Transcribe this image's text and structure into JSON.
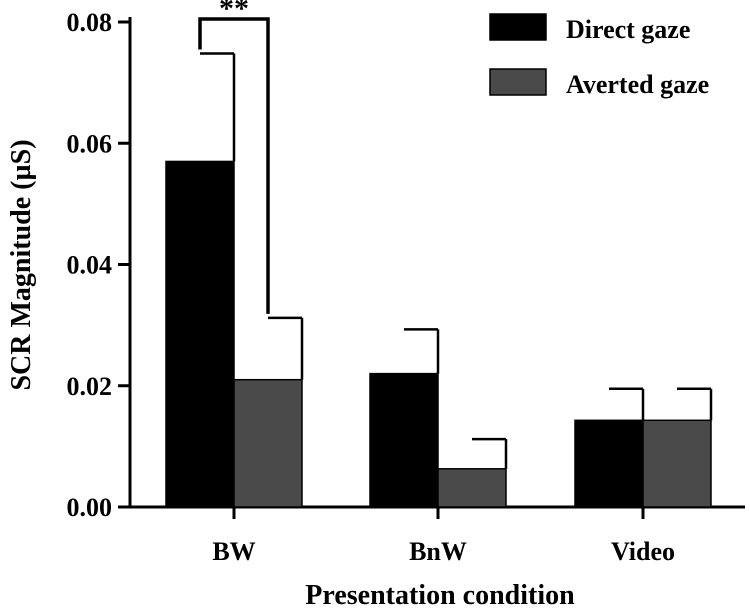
{
  "chart_data": {
    "type": "bar",
    "xlabel": "Presentation condition",
    "ylabel": "SCR Magnitude (µS)",
    "ylim": [
      0,
      0.08
    ],
    "yticks": [
      "0.00",
      "0.02",
      "0.04",
      "0.06",
      "0.08"
    ],
    "categories": [
      "BW",
      "BnW",
      "Video"
    ],
    "series": [
      {
        "name": "Direct gaze",
        "color": "#000000",
        "values": [
          0.057,
          0.022,
          0.0143
        ],
        "errors": [
          0.0178,
          0.0073,
          0.0052
        ]
      },
      {
        "name": "Averted gaze",
        "color": "#4a4a4a",
        "values": [
          0.021,
          0.0063,
          0.0143
        ],
        "errors": [
          0.0102,
          0.0049,
          0.0052
        ]
      }
    ],
    "legend_position": "top-right",
    "significance": [
      {
        "category": "BW",
        "label": "**",
        "bracket_top": 0.0805
      }
    ],
    "grid": false
  }
}
